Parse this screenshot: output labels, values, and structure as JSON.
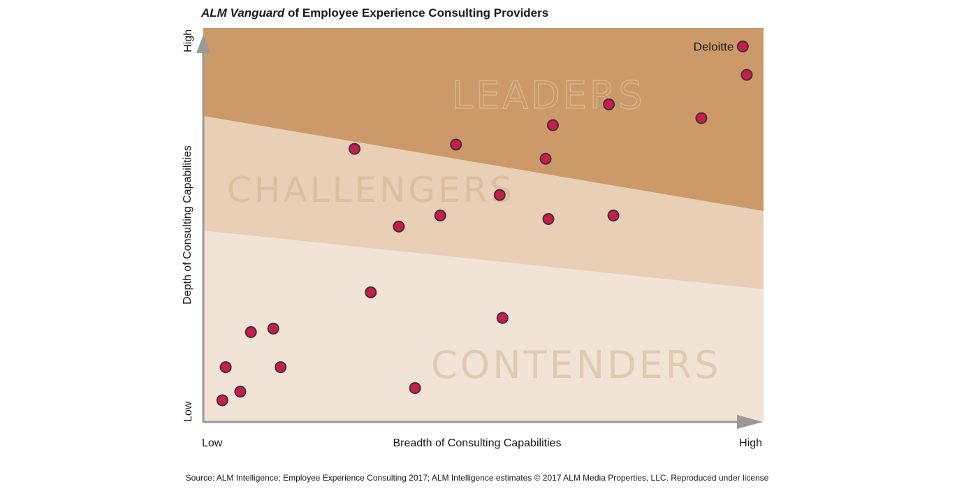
{
  "title": {
    "emphasis": "ALM Vanguard",
    "rest": " of Employee Experience Consulting Providers"
  },
  "source": "Source: ALM Intelligence; Employee Experience Consulting 2017; ALM Intelligence estimates © 2017 ALM Media Properties, LLC.  Reproduced under license",
  "chart_data": {
    "type": "scatter",
    "xlabel": "Breadth of Consulting Capabilities",
    "ylabel": "Depth of Consulting Capabilities",
    "x_low_label": "Low",
    "x_high_label": "High",
    "y_low_label": "Low",
    "y_high_label": "High",
    "xlim": [
      0,
      100
    ],
    "ylim": [
      0,
      100
    ],
    "regions": [
      {
        "name": "LEADERS",
        "color": "#cb9a68",
        "label_color": "#dcb48a"
      },
      {
        "name": "CHALLENGERS",
        "color": "#e8cfb5",
        "label_color": "#dcbfa0"
      },
      {
        "name": "CONTENDERS",
        "color": "#f1e3d5",
        "label_color": "#e2caaf"
      }
    ],
    "point_color": "#c41f45",
    "point_stroke": "#4a2a45",
    "points": [
      {
        "x": 96.3,
        "y": 95.3,
        "label": "Deloitte"
      },
      {
        "x": 97.0,
        "y": 88.1,
        "label": ""
      },
      {
        "x": 72.4,
        "y": 80.6,
        "label": ""
      },
      {
        "x": 62.4,
        "y": 75.3,
        "label": ""
      },
      {
        "x": 88.9,
        "y": 77.1,
        "label": ""
      },
      {
        "x": 45.1,
        "y": 70.4,
        "label": ""
      },
      {
        "x": 27.0,
        "y": 69.3,
        "label": ""
      },
      {
        "x": 61.1,
        "y": 66.8,
        "label": ""
      },
      {
        "x": 52.9,
        "y": 57.6,
        "label": ""
      },
      {
        "x": 42.3,
        "y": 52.4,
        "label": ""
      },
      {
        "x": 61.6,
        "y": 51.5,
        "label": ""
      },
      {
        "x": 73.2,
        "y": 52.4,
        "label": ""
      },
      {
        "x": 34.9,
        "y": 49.6,
        "label": ""
      },
      {
        "x": 29.9,
        "y": 32.9,
        "label": ""
      },
      {
        "x": 53.4,
        "y": 26.4,
        "label": ""
      },
      {
        "x": 8.5,
        "y": 22.8,
        "label": ""
      },
      {
        "x": 12.5,
        "y": 23.7,
        "label": ""
      },
      {
        "x": 4.0,
        "y": 13.9,
        "label": ""
      },
      {
        "x": 13.8,
        "y": 13.9,
        "label": ""
      },
      {
        "x": 6.6,
        "y": 7.7,
        "label": ""
      },
      {
        "x": 3.4,
        "y": 5.5,
        "label": ""
      },
      {
        "x": 37.8,
        "y": 8.6,
        "label": ""
      }
    ]
  }
}
